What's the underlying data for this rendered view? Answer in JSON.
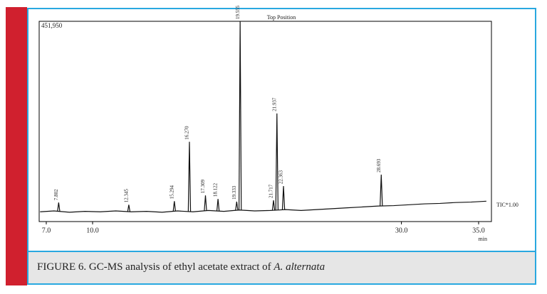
{
  "chart_data": {
    "type": "line",
    "title": "Top Position",
    "max_label": "451,950",
    "trace_label": "TIC*1.00",
    "x_unit": "min",
    "color": "#111111",
    "xlim": [
      6.54,
      35.83
    ],
    "ylim": [
      0,
      451950
    ],
    "xticks": [
      {
        "value": 7,
        "label": "7.0"
      },
      {
        "value": 10,
        "label": "10.0"
      },
      {
        "value": 30,
        "label": "30.0"
      },
      {
        "value": 35,
        "label": "35.0"
      }
    ],
    "x": [
      6.6,
      7.5,
      8.5,
      9.5,
      10.5,
      11.5,
      12.5,
      13.5,
      14.5,
      15.5,
      16.5,
      17.5,
      18.5,
      19.5,
      20.5,
      21.5,
      22.5,
      23.5,
      24.5,
      25.5,
      26.5,
      27.5,
      28.5,
      29.5,
      30.5,
      31.5,
      32.5,
      33.5,
      34.5,
      35.5
    ],
    "values": [
      22000,
      24000,
      21000,
      23000,
      22000,
      24000,
      22000,
      23000,
      21000,
      24000,
      22000,
      25000,
      23000,
      26000,
      24000,
      25000,
      27000,
      25000,
      27000,
      29000,
      31000,
      33000,
      35000,
      36000,
      38000,
      40000,
      41000,
      43000,
      44000,
      46000
    ],
    "peaks": {
      "x": [
        7.802,
        12.345,
        15.294,
        16.27,
        17.309,
        18.122,
        19.333,
        19.555,
        21.717,
        21.937,
        22.363,
        28.693
      ],
      "labels": [
        "7.802",
        "12.345",
        "15.294",
        "16.270",
        "17.309",
        "18.122",
        "19.333",
        "19.555",
        "21.717",
        "21.937",
        "22.363",
        "28.693"
      ],
      "values": [
        43000,
        38000,
        46000,
        180000,
        59000,
        51000,
        45000,
        451950,
        48000,
        244000,
        80000,
        106000
      ]
    }
  },
  "caption": {
    "prefix": "FIGURE 6. GC-MS analysis of ethyl acetate extract of ",
    "species": "A. alternata"
  }
}
